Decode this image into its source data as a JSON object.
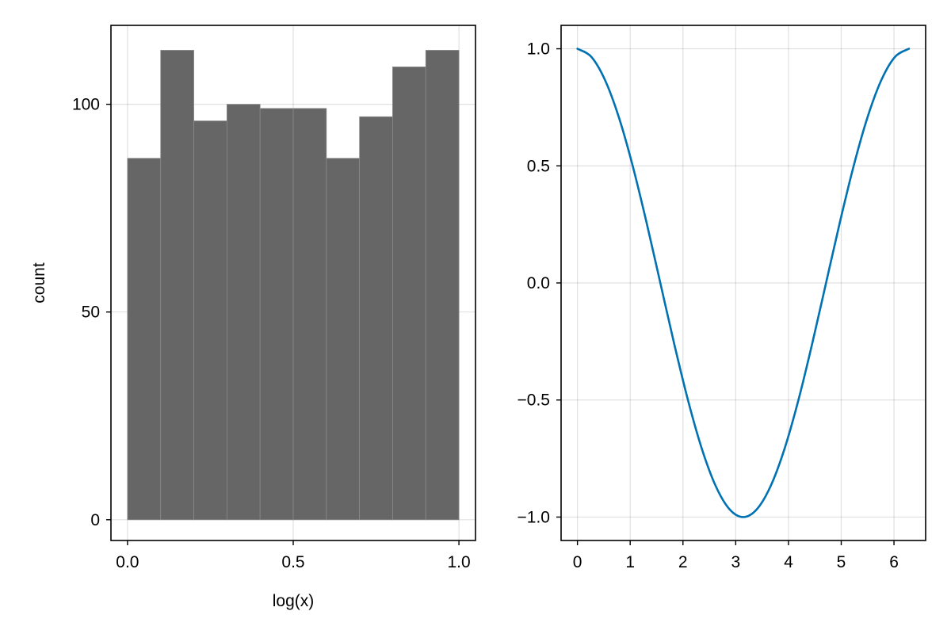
{
  "chart_data": [
    {
      "type": "bar",
      "subtype": "histogram",
      "xlabel": "log(x)",
      "ylabel": "count",
      "xlim": [
        -0.05,
        1.05
      ],
      "ylim": [
        -5,
        119
      ],
      "xticks": [
        0.0,
        0.5,
        1.0
      ],
      "xtick_labels": [
        "0.0",
        "0.5",
        "1.0"
      ],
      "yticks": [
        0,
        50,
        100
      ],
      "ytick_labels": [
        "0",
        "50",
        "100"
      ],
      "bin_edges": [
        0.0,
        0.1,
        0.2,
        0.3,
        0.4,
        0.5,
        0.6,
        0.7,
        0.8,
        0.9,
        1.0
      ],
      "values": [
        87,
        113,
        96,
        100,
        99,
        99,
        87,
        97,
        109,
        113
      ],
      "bar_color": "#666666",
      "grid": true
    },
    {
      "type": "line",
      "function": "cos(x)",
      "xlabel": "",
      "ylabel": "",
      "xlim": [
        -0.31,
        6.6
      ],
      "ylim": [
        -1.1,
        1.1
      ],
      "xticks": [
        0,
        1,
        2,
        3,
        4,
        5,
        6
      ],
      "xtick_labels": [
        "0",
        "1",
        "2",
        "3",
        "4",
        "5",
        "6"
      ],
      "yticks": [
        -1.0,
        -0.5,
        0.0,
        0.5,
        1.0
      ],
      "ytick_labels": [
        "−1.0",
        "−0.5",
        "0.0",
        "0.5",
        "1.0"
      ],
      "x": [
        0,
        0.2618,
        0.5236,
        0.7854,
        1.0472,
        1.309,
        1.5708,
        1.8326,
        2.0944,
        2.3562,
        2.618,
        2.8798,
        3.1416,
        3.4034,
        3.6652,
        3.927,
        4.1888,
        4.4506,
        4.7124,
        4.9742,
        5.236,
        5.4978,
        5.7596,
        6.0214,
        6.2832
      ],
      "y": [
        1.0,
        0.9659,
        0.866,
        0.7071,
        0.5,
        0.2588,
        0.0,
        -0.2588,
        -0.5,
        -0.7071,
        -0.866,
        -0.9659,
        -1.0,
        -0.9659,
        -0.866,
        -0.7071,
        -0.5,
        -0.2588,
        0.0,
        0.2588,
        0.5,
        0.7071,
        0.866,
        0.9659,
        1.0
      ],
      "line_color": "#0072b2",
      "grid": true
    }
  ]
}
